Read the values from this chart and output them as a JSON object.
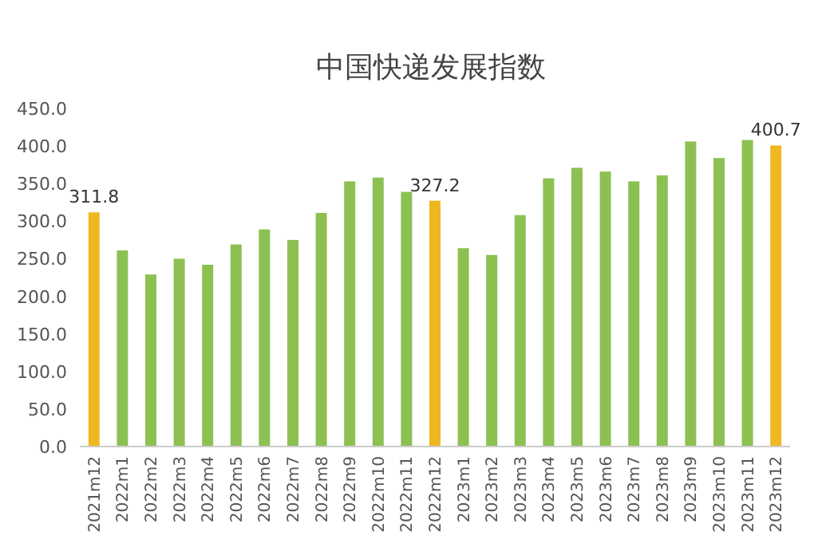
{
  "chart_data": {
    "type": "bar",
    "title": "中国快递发展指数",
    "categories": [
      "2021m12",
      "2022m1",
      "2022m2",
      "2022m3",
      "2022m4",
      "2022m5",
      "2022m6",
      "2022m7",
      "2022m8",
      "2022m9",
      "2022m10",
      "2022m11",
      "2022m12",
      "2023m1",
      "2023m2",
      "2023m3",
      "2023m4",
      "2023m5",
      "2023m6",
      "2023m7",
      "2023m8",
      "2023m9",
      "2023m10",
      "2023m11",
      "2023m12"
    ],
    "values": [
      311.8,
      261,
      229,
      250,
      242,
      269,
      289,
      275,
      311,
      353,
      358,
      339,
      327.2,
      264,
      255,
      308,
      357,
      371,
      366,
      353,
      361,
      406,
      384,
      408,
      400.7
    ],
    "colors": [
      "#f0b820",
      "#8cc152",
      "#8cc152",
      "#8cc152",
      "#8cc152",
      "#8cc152",
      "#8cc152",
      "#8cc152",
      "#8cc152",
      "#8cc152",
      "#8cc152",
      "#8cc152",
      "#f0b820",
      "#8cc152",
      "#8cc152",
      "#8cc152",
      "#8cc152",
      "#8cc152",
      "#8cc152",
      "#8cc152",
      "#8cc152",
      "#8cc152",
      "#8cc152",
      "#8cc152",
      "#f0b820"
    ],
    "value_labels": [
      "311.8",
      null,
      null,
      null,
      null,
      null,
      null,
      null,
      null,
      null,
      null,
      null,
      "327.2",
      null,
      null,
      null,
      null,
      null,
      null,
      null,
      null,
      null,
      null,
      null,
      "400.7"
    ],
    "ylim": [
      0,
      450
    ],
    "yticks": [
      {
        "value": 0,
        "label": "0.0"
      },
      {
        "value": 50,
        "label": "50.0"
      },
      {
        "value": 100,
        "label": "100.0"
      },
      {
        "value": 150,
        "label": "150.0"
      },
      {
        "value": 200,
        "label": "200.0"
      },
      {
        "value": 250,
        "label": "250.0"
      },
      {
        "value": 300,
        "label": "300.0"
      },
      {
        "value": 350,
        "label": "350.0"
      },
      {
        "value": 400,
        "label": "400.0"
      },
      {
        "value": 450,
        "label": "450.0"
      }
    ],
    "grid": false
  }
}
